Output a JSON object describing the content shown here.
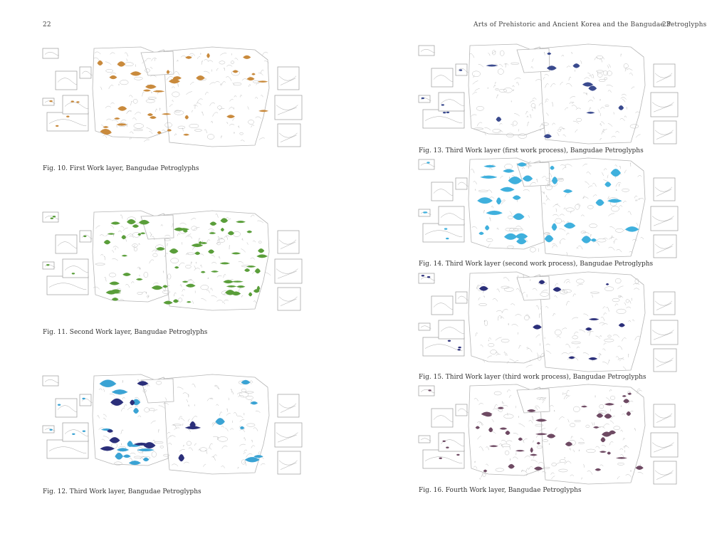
{
  "left_page": {
    "page_number": "22",
    "figures": [
      {
        "caption": "Fig. 10. First Work layer, Bangudae Petroglyphs",
        "layer_color": "#c98a3c",
        "highlight": "orange"
      },
      {
        "caption": "Fig. 11. Second Work layer, Bangudae Petroglyphs",
        "layer_color": "#5a9e3a",
        "highlight": "green"
      },
      {
        "caption": "Fig. 12. Third Work layer, Bangudae Petroglyphs",
        "layer_color": "#3aa3d4",
        "secondary_color": "#2b2f7a",
        "highlight": "blue"
      }
    ]
  },
  "right_page": {
    "running_head": "Arts of Prehistoric and Ancient Korea and the Bangudae Petroglyphs",
    "page_number": "23",
    "figures": [
      {
        "caption": "Fig. 13. Third Work layer (first work process), Bangudae Petroglyphs",
        "layer_color": "#3a4a8e",
        "highlight": "navy"
      },
      {
        "caption": "Fig. 14. Third Work layer (second work process), Bangudae Petroglyphs",
        "layer_color": "#3fb0dd",
        "highlight": "light-blue"
      },
      {
        "caption": "Fig. 15. Third Work layer (third work process), Bangudae Petroglyphs",
        "layer_color": "#2b2f7a",
        "highlight": "dark-navy"
      },
      {
        "caption": "Fig. 16. Fourth Work layer, Bangudae Petroglyphs",
        "layer_color": "#6e4a63",
        "highlight": "purple"
      }
    ]
  }
}
